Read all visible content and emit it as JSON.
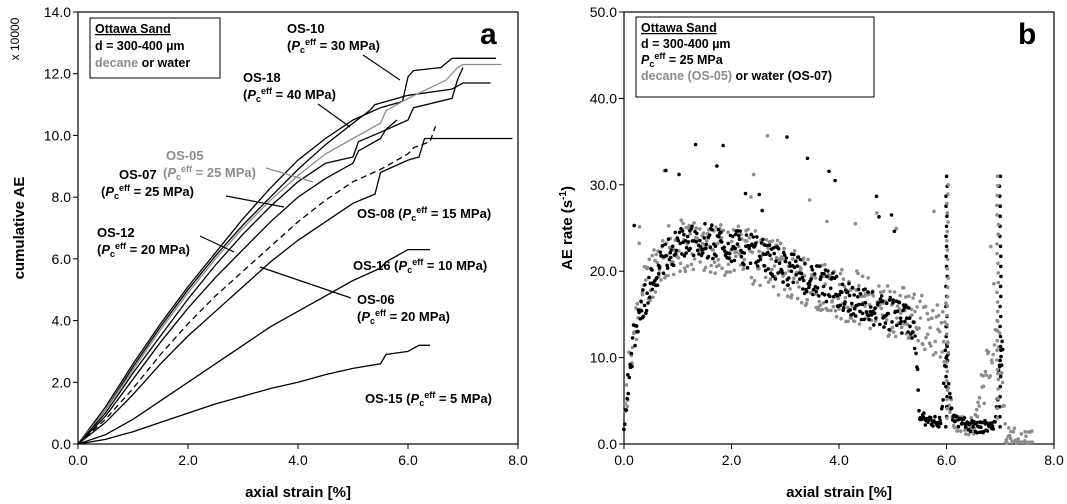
{
  "chart_data": [
    {
      "type": "line",
      "panel_label": "a",
      "xlabel": "axial strain [%]",
      "ylabel": "cumulative AE",
      "y_multiplier": "x 10000",
      "xlim": [
        0,
        8
      ],
      "ylim": [
        0,
        14
      ],
      "x_ticks": [
        "0.0",
        "2.0",
        "4.0",
        "6.0",
        "8.0"
      ],
      "y_ticks": [
        "0.0",
        "2.0",
        "4.0",
        "6.0",
        "8.0",
        "10.0",
        "12.0",
        "14.0"
      ],
      "legend": {
        "material": "Ottawa Sand",
        "grain_size": "d = 300-400 µm",
        "fluid_gray": "decane",
        "fluid_black": "or water"
      },
      "series": [
        {
          "id": "OS-10",
          "peff": "30 MPa",
          "color": "#000000",
          "dash": false,
          "x": [
            0,
            0.5,
            1.0,
            1.5,
            2.0,
            2.5,
            3.0,
            3.5,
            4.0,
            4.5,
            5.0,
            5.5,
            5.9,
            6.0,
            6.1,
            6.6,
            6.8,
            6.9,
            7.0,
            7.6
          ],
          "y": [
            0,
            1.2,
            2.6,
            3.9,
            5.1,
            6.2,
            7.3,
            8.3,
            9.2,
            9.9,
            10.5,
            10.9,
            11.1,
            11.9,
            12.1,
            12.2,
            12.5,
            12.5,
            12.5,
            12.5
          ]
        },
        {
          "id": "OS-18",
          "peff": "40 MPa",
          "color": "#000000",
          "dash": false,
          "x": [
            0,
            0.5,
            1.0,
            1.5,
            2.0,
            2.5,
            3.0,
            3.5,
            4.0,
            4.5,
            5.0,
            5.3,
            5.4,
            6.0,
            6.8,
            7.0,
            7.5
          ],
          "y": [
            0,
            1.1,
            2.5,
            3.8,
            5.0,
            6.1,
            7.1,
            8.0,
            8.9,
            9.7,
            10.4,
            10.8,
            11.0,
            11.3,
            11.5,
            11.7,
            11.7
          ]
        },
        {
          "id": "OS-05",
          "peff": "25 MPa",
          "color": "#8c8c8c",
          "dash": false,
          "x": [
            0,
            0.5,
            1.0,
            1.5,
            2.0,
            2.5,
            3.0,
            3.5,
            4.0,
            4.5,
            5.0,
            5.5,
            5.6,
            6.0,
            6.7,
            6.9,
            7.0,
            7.7
          ],
          "y": [
            0,
            1.1,
            2.4,
            3.7,
            4.9,
            6.0,
            7.0,
            7.9,
            8.7,
            9.4,
            9.9,
            10.4,
            10.8,
            11.2,
            11.8,
            12.2,
            12.3,
            12.3
          ]
        },
        {
          "id": "OS-07",
          "peff": "25 MPa",
          "color": "#000000",
          "dash": false,
          "x": [
            0,
            0.5,
            1.0,
            1.5,
            2.0,
            2.5,
            3.0,
            3.5,
            4.0,
            4.5,
            5.0,
            5.1,
            5.5,
            6.0,
            6.1,
            6.8,
            6.9,
            7.0
          ],
          "y": [
            0,
            1.0,
            2.3,
            3.5,
            4.7,
            5.8,
            6.8,
            7.7,
            8.5,
            9.1,
            9.3,
            9.8,
            10.1,
            10.5,
            10.9,
            11.2,
            11.8,
            12.2
          ]
        },
        {
          "id": "OS-12",
          "peff": "20 MPa",
          "color": "#000000",
          "dash": false,
          "x": [
            0,
            0.5,
            1.0,
            1.5,
            2.0,
            2.5,
            3.0,
            3.5,
            4.0,
            4.5,
            5.0,
            5.1,
            5.5,
            5.6,
            5.8
          ],
          "y": [
            0,
            0.9,
            2.1,
            3.3,
            4.4,
            5.4,
            6.3,
            7.2,
            8.0,
            8.6,
            9.1,
            9.5,
            9.9,
            10.2,
            10.5
          ]
        },
        {
          "id": "OS-06",
          "peff": "20 MPa",
          "color": "#000000",
          "dash": true,
          "x": [
            0,
            0.5,
            1.0,
            1.5,
            2.0,
            2.5,
            3.0,
            3.5,
            4.0,
            4.5,
            5.0,
            5.5,
            5.6,
            6.0,
            6.1,
            6.4,
            6.5
          ],
          "y": [
            0,
            0.8,
            1.8,
            2.9,
            3.9,
            4.8,
            5.6,
            6.4,
            7.2,
            7.9,
            8.5,
            8.9,
            9.0,
            9.4,
            9.6,
            9.8,
            10.3
          ]
        },
        {
          "id": "OS-08",
          "peff": "15 MPa",
          "color": "#000000",
          "dash": false,
          "x": [
            0,
            0.5,
            1.0,
            1.5,
            2.0,
            2.5,
            3.0,
            3.5,
            4.0,
            4.5,
            5.0,
            5.4,
            5.5,
            6.0,
            6.2,
            6.3,
            7.0,
            7.9
          ],
          "y": [
            0,
            0.7,
            1.6,
            2.6,
            3.5,
            4.3,
            5.1,
            5.9,
            6.6,
            7.2,
            7.8,
            8.1,
            8.8,
            9.2,
            9.3,
            9.9,
            9.9,
            9.9
          ]
        },
        {
          "id": "OS-16",
          "peff": "10 MPa",
          "color": "#000000",
          "dash": false,
          "x": [
            0,
            0.5,
            1.0,
            1.5,
            2.0,
            2.5,
            3.0,
            3.5,
            4.0,
            4.5,
            5.0,
            5.5,
            5.6,
            6.0,
            6.4
          ],
          "y": [
            0,
            0.3,
            0.8,
            1.4,
            2.0,
            2.6,
            3.2,
            3.8,
            4.3,
            4.8,
            5.3,
            5.7,
            5.9,
            6.3,
            6.3
          ]
        },
        {
          "id": "OS-15",
          "peff": "5 MPa",
          "color": "#000000",
          "dash": false,
          "x": [
            0,
            0.5,
            1.0,
            1.5,
            2.0,
            2.5,
            3.0,
            3.5,
            4.0,
            4.5,
            5.0,
            5.5,
            5.6,
            6.0,
            6.2,
            6.4
          ],
          "y": [
            0,
            0.15,
            0.4,
            0.7,
            1.0,
            1.3,
            1.55,
            1.8,
            2.0,
            2.25,
            2.45,
            2.6,
            2.9,
            3.0,
            3.2,
            3.2
          ]
        }
      ]
    },
    {
      "type": "scatter",
      "panel_label": "b",
      "xlabel": "axial strain [%]",
      "ylabel": "AE rate (s",
      "ylabel_sup": "-1",
      "ylabel_end": ")",
      "xlim": [
        0,
        8
      ],
      "ylim": [
        0,
        50
      ],
      "x_ticks": [
        "0.0",
        "2.0",
        "4.0",
        "6.0",
        "8.0"
      ],
      "y_ticks": [
        "0.0",
        "10.0",
        "20.0",
        "30.0",
        "40.0",
        "50.0"
      ],
      "legend": {
        "material": "Ottawa Sand",
        "grain_size": "d = 300-400 µm",
        "pressure": "= 25 MPa",
        "fluid_gray": "decane (OS-05)",
        "fluid_black": "or water (OS-07)"
      },
      "series": [
        {
          "name": "decane (OS-05)",
          "color": "#8c8c8c",
          "profile_x": [
            0,
            0.1,
            0.2,
            0.4,
            0.6,
            0.8,
            1.0,
            1.2,
            1.5,
            2.0,
            2.5,
            3.0,
            3.5,
            4.0,
            4.5,
            5.0,
            5.4,
            5.6,
            5.9,
            6.0,
            6.1,
            6.3,
            6.5,
            6.9,
            7.0,
            7.1,
            7.5,
            7.6
          ],
          "profile_y": [
            2,
            9,
            14,
            18,
            21,
            22,
            23,
            23,
            23,
            22.5,
            21.5,
            20,
            19,
            17.5,
            16.5,
            15.5,
            15,
            14,
            13,
            12,
            3,
            2,
            2,
            12,
            10,
            1,
            0.5,
            0.5
          ]
        },
        {
          "name": "water (OS-07)",
          "color": "#000000",
          "profile_x": [
            0,
            0.1,
            0.2,
            0.4,
            0.6,
            0.8,
            1.0,
            1.2,
            1.5,
            2.0,
            2.5,
            3.0,
            3.5,
            4.0,
            4.5,
            5.0,
            5.4,
            5.5,
            5.9,
            6.0,
            6.1,
            6.5,
            6.9,
            7.0,
            7.05
          ],
          "profile_y": [
            2,
            8,
            13,
            17,
            20,
            22,
            23,
            23.5,
            23.5,
            23,
            22,
            20.5,
            19,
            17.5,
            16,
            15,
            13.5,
            3,
            2.5,
            12,
            3,
            2,
            2,
            11,
            10
          ]
        }
      ]
    }
  ],
  "panel_a": {
    "annotations": [
      {
        "id": "OS-10",
        "label": "OS-10",
        "peff": "= 30 MPa)",
        "gray": false
      },
      {
        "id": "OS-18",
        "label": "OS-18",
        "peff": "= 40 MPa)",
        "gray": false
      },
      {
        "id": "OS-05",
        "label": "OS-05",
        "peff": "= 25 MPa)",
        "gray": true
      },
      {
        "id": "OS-07",
        "label": "OS-07",
        "peff": "= 25 MPa)",
        "gray": false
      },
      {
        "id": "OS-12",
        "label": "OS-12",
        "peff": "= 20 MPa)",
        "gray": false
      },
      {
        "id": "OS-08",
        "label": "OS-08 (",
        "peff": "= 15 MPa)",
        "gray": false
      },
      {
        "id": "OS-16",
        "label": "OS-16 (",
        "peff": "= 10 MPa)",
        "gray": false
      },
      {
        "id": "OS-06",
        "label": "OS-06",
        "peff": "= 20 MPa)",
        "gray": false
      },
      {
        "id": "OS-15",
        "label": "OS-15 (",
        "peff": "= 5 MPa)",
        "gray": false
      }
    ],
    "pc_symbol": "P",
    "pc_sub": "c",
    "pc_sup": "eff"
  }
}
